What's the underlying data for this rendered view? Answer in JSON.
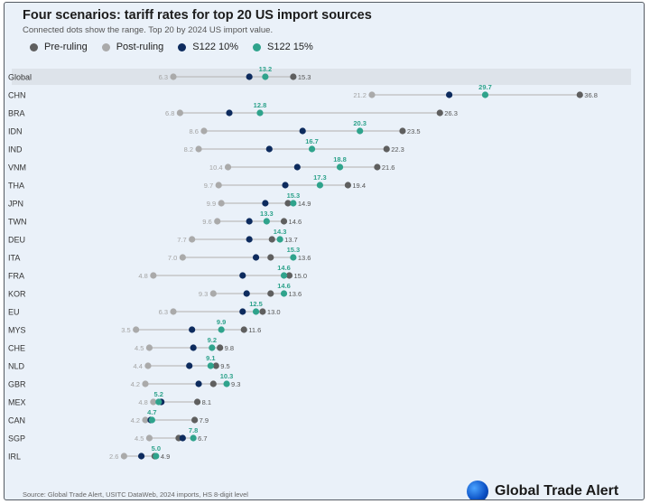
{
  "title": "Four scenarios: tariff rates for top 20 US import sources",
  "subtitle": "Connected dots show the range. Top 20 by 2024 US import value.",
  "source": "Source: Global Trade Alert, USITC DataWeb, 2024 imports, HS 8-digit level",
  "brand": {
    "name": "Global Trade Alert",
    "icon": "globe-icon"
  },
  "colors": {
    "pre": "#5f5f5f",
    "post": "#aaaaaa",
    "s10": "#0d2b5e",
    "s15": "#2fa38c",
    "range_line": "#bdbdbd",
    "highlight": "#dde3ea"
  },
  "chart_data": {
    "type": "dumbbell",
    "title": "Four scenarios: tariff rates for top 20 US import sources",
    "subtitle": "Connected dots show the range. Top 20 by 2024 US import value.",
    "xlim": [
      0,
      38
    ],
    "grid": false,
    "legend": "top-left",
    "series": [
      {
        "key": "pre",
        "name": "Pre-ruling"
      },
      {
        "key": "post",
        "name": "Post-ruling"
      },
      {
        "key": "s10",
        "name": "S122 10%"
      },
      {
        "key": "s15",
        "name": "S122 15%"
      }
    ],
    "rows": [
      {
        "label": "Global",
        "highlight": true,
        "pre": 15.3,
        "post": 6.3,
        "s10": 12.0,
        "s15": 13.2,
        "labels": {
          "min": "6.3",
          "max": "15.3",
          "s15": "13.2"
        }
      },
      {
        "label": "CHN",
        "pre": 36.8,
        "post": 21.2,
        "s10": 27.0,
        "s15": 29.7,
        "labels": {
          "min": "21.2",
          "max": "36.8",
          "s15": "29.7"
        }
      },
      {
        "label": "BRA",
        "pre": 26.3,
        "post": 6.8,
        "s10": 10.5,
        "s15": 12.8,
        "labels": {
          "min": "6.8",
          "max": "26.3",
          "s15": "12.8"
        }
      },
      {
        "label": "IDN",
        "pre": 23.5,
        "post": 8.6,
        "s10": 16.0,
        "s15": 20.3,
        "labels": {
          "min": "8.6",
          "max": "23.5",
          "s15": "20.3"
        }
      },
      {
        "label": "IND",
        "pre": 22.3,
        "post": 8.2,
        "s10": 13.5,
        "s15": 16.7,
        "labels": {
          "min": "8.2",
          "max": "22.3",
          "s15": "16.7"
        }
      },
      {
        "label": "VNM",
        "pre": 21.6,
        "post": 10.4,
        "s10": 15.6,
        "s15": 18.8,
        "labels": {
          "min": "10.4",
          "max": "21.6",
          "s15": "18.8"
        }
      },
      {
        "label": "THA",
        "pre": 19.4,
        "post": 9.7,
        "s10": 14.7,
        "s15": 17.3,
        "labels": {
          "min": "9.7",
          "max": "19.4",
          "s15": "17.3"
        }
      },
      {
        "label": "JPN",
        "pre": 14.9,
        "post": 9.9,
        "s10": 13.2,
        "s15": 15.3,
        "labels": {
          "min": "9.9",
          "max": "14.9",
          "s15": "15.3"
        }
      },
      {
        "label": "TWN",
        "pre": 14.6,
        "post": 9.6,
        "s10": 12.0,
        "s15": 13.3,
        "labels": {
          "min": "9.6",
          "max": "14.6",
          "s15": "13.3"
        }
      },
      {
        "label": "DEU",
        "pre": 13.7,
        "post": 7.7,
        "s10": 12.0,
        "s15": 14.3,
        "labels": {
          "min": "7.7",
          "max": "13.7",
          "s15": "14.3"
        }
      },
      {
        "label": "ITA",
        "pre": 13.6,
        "post": 7.0,
        "s10": 12.5,
        "s15": 15.3,
        "labels": {
          "min": "7.0",
          "max": "13.6",
          "s15": "15.3"
        }
      },
      {
        "label": "FRA",
        "pre": 15.0,
        "post": 4.8,
        "s10": 11.5,
        "s15": 14.6,
        "labels": {
          "min": "4.8",
          "max": "15.0",
          "s15": "14.6"
        }
      },
      {
        "label": "KOR",
        "pre": 13.6,
        "post": 9.3,
        "s10": 11.8,
        "s15": 14.6,
        "labels": {
          "min": "9.3",
          "max": "13.6",
          "s15": "14.6"
        }
      },
      {
        "label": "EU",
        "pre": 13.0,
        "post": 6.3,
        "s10": 11.5,
        "s15": 12.5,
        "labels": {
          "min": "6.3",
          "max": "13.0",
          "s15": "12.5"
        }
      },
      {
        "label": "MYS",
        "pre": 11.6,
        "post": 3.5,
        "s10": 7.7,
        "s15": 9.9,
        "labels": {
          "min": "3.5",
          "max": "11.6",
          "s15": "9.9"
        }
      },
      {
        "label": "CHE",
        "pre": 9.8,
        "post": 4.5,
        "s10": 7.8,
        "s15": 9.2,
        "labels": {
          "min": "4.5",
          "max": "9.8",
          "s15": "9.2"
        }
      },
      {
        "label": "NLD",
        "pre": 9.5,
        "post": 4.4,
        "s10": 7.5,
        "s15": 9.1,
        "labels": {
          "min": "4.4",
          "max": "9.5",
          "s15": "9.1"
        }
      },
      {
        "label": "GBR",
        "pre": 9.3,
        "post": 4.2,
        "s10": 8.2,
        "s15": 10.3,
        "labels": {
          "min": "4.2",
          "max": "9.3",
          "s15": "10.3"
        }
      },
      {
        "label": "MEX",
        "pre": 8.1,
        "post": 4.8,
        "s10": 5.4,
        "s15": 5.2,
        "labels": {
          "min": "4.8",
          "max": "8.1",
          "s15": "5.2"
        }
      },
      {
        "label": "CAN",
        "pre": 7.9,
        "post": 4.2,
        "s10": 4.6,
        "s15": 4.7,
        "labels": {
          "min": "4.2",
          "max": "7.9",
          "s15": "4.7"
        }
      },
      {
        "label": "SGP",
        "pre": 6.7,
        "post": 4.5,
        "s10": 7.0,
        "s15": 7.8,
        "labels": {
          "min": "4.5",
          "max": "6.7",
          "s15": "7.8"
        }
      },
      {
        "label": "IRL",
        "pre": 4.9,
        "post": 2.6,
        "s10": 3.9,
        "s15": 5.0,
        "labels": {
          "min": "2.6",
          "max": "4.9",
          "s15": "5.0"
        }
      }
    ]
  }
}
